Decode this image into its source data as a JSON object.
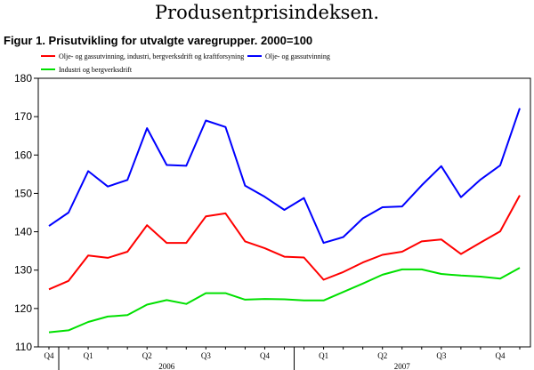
{
  "page_heading": "Produsentprisindeksen.",
  "chart_data": {
    "type": "line",
    "title": "Figur 1. Prisutvikling for utvalgte varegrupper. 2000=100",
    "xlabel": "",
    "ylabel": "",
    "ylim": [
      110,
      180
    ],
    "yticks": [
      110,
      120,
      130,
      140,
      150,
      160,
      170,
      180
    ],
    "grid": false,
    "legend_position": "top",
    "x": [
      "2005-12",
      "2006-01",
      "2006-02",
      "2006-03",
      "2006-04",
      "2006-05",
      "2006-06",
      "2006-07",
      "2006-08",
      "2006-09",
      "2006-10",
      "2006-11",
      "2006-12",
      "2007-01",
      "2007-02",
      "2007-03",
      "2007-04",
      "2007-05",
      "2007-06",
      "2007-07",
      "2007-08",
      "2007-09",
      "2007-10",
      "2007-11",
      "2007-12"
    ],
    "x_tick_labels": [
      {
        "label": "Q4",
        "at": "2005-12"
      },
      {
        "label": "Q1",
        "at": "2006-02"
      },
      {
        "label": "Q2",
        "at": "2006-05"
      },
      {
        "label": "Q3",
        "at": "2006-08"
      },
      {
        "label": "Q4",
        "at": "2006-11"
      },
      {
        "label": "Q1",
        "at": "2007-02"
      },
      {
        "label": "Q2",
        "at": "2007-05"
      },
      {
        "label": "Q3",
        "at": "2007-08"
      },
      {
        "label": "Q4",
        "at": "2007-11"
      }
    ],
    "year_labels": [
      {
        "label": "2006",
        "at": "2006-06"
      },
      {
        "label": "2007",
        "at": "2007-06"
      }
    ],
    "series": [
      {
        "name": "Olje- og gassutvinning, industri, bergverksdrift og kraftforsyning",
        "color": "#ff0000",
        "values": [
          125.0,
          127.2,
          133.8,
          133.2,
          134.8,
          141.7,
          137.1,
          137.1,
          144.0,
          144.8,
          137.5,
          135.7,
          133.5,
          133.3,
          127.5,
          129.5,
          132.0,
          134.0,
          134.8,
          137.5,
          138.0,
          134.2,
          137.2,
          140.1,
          149.5
        ]
      },
      {
        "name": "Olje- og gassutvinning",
        "color": "#0000ff",
        "values": [
          141.5,
          145.0,
          155.8,
          151.8,
          153.5,
          167.0,
          157.4,
          157.2,
          169.0,
          167.3,
          152.0,
          149.1,
          145.7,
          148.8,
          137.1,
          138.6,
          143.5,
          146.4,
          146.6,
          152.1,
          157.1,
          149.0,
          153.6,
          157.3,
          172.2
        ]
      },
      {
        "name": "Industri og bergverksdrift",
        "color": "#00e000",
        "values": [
          113.8,
          114.3,
          116.5,
          117.9,
          118.3,
          121.0,
          122.2,
          121.2,
          124.0,
          124.0,
          122.3,
          122.5,
          122.4,
          122.1,
          122.1,
          124.3,
          126.5,
          128.8,
          130.2,
          130.2,
          129.0,
          128.6,
          128.3,
          127.8,
          130.6
        ]
      }
    ]
  }
}
